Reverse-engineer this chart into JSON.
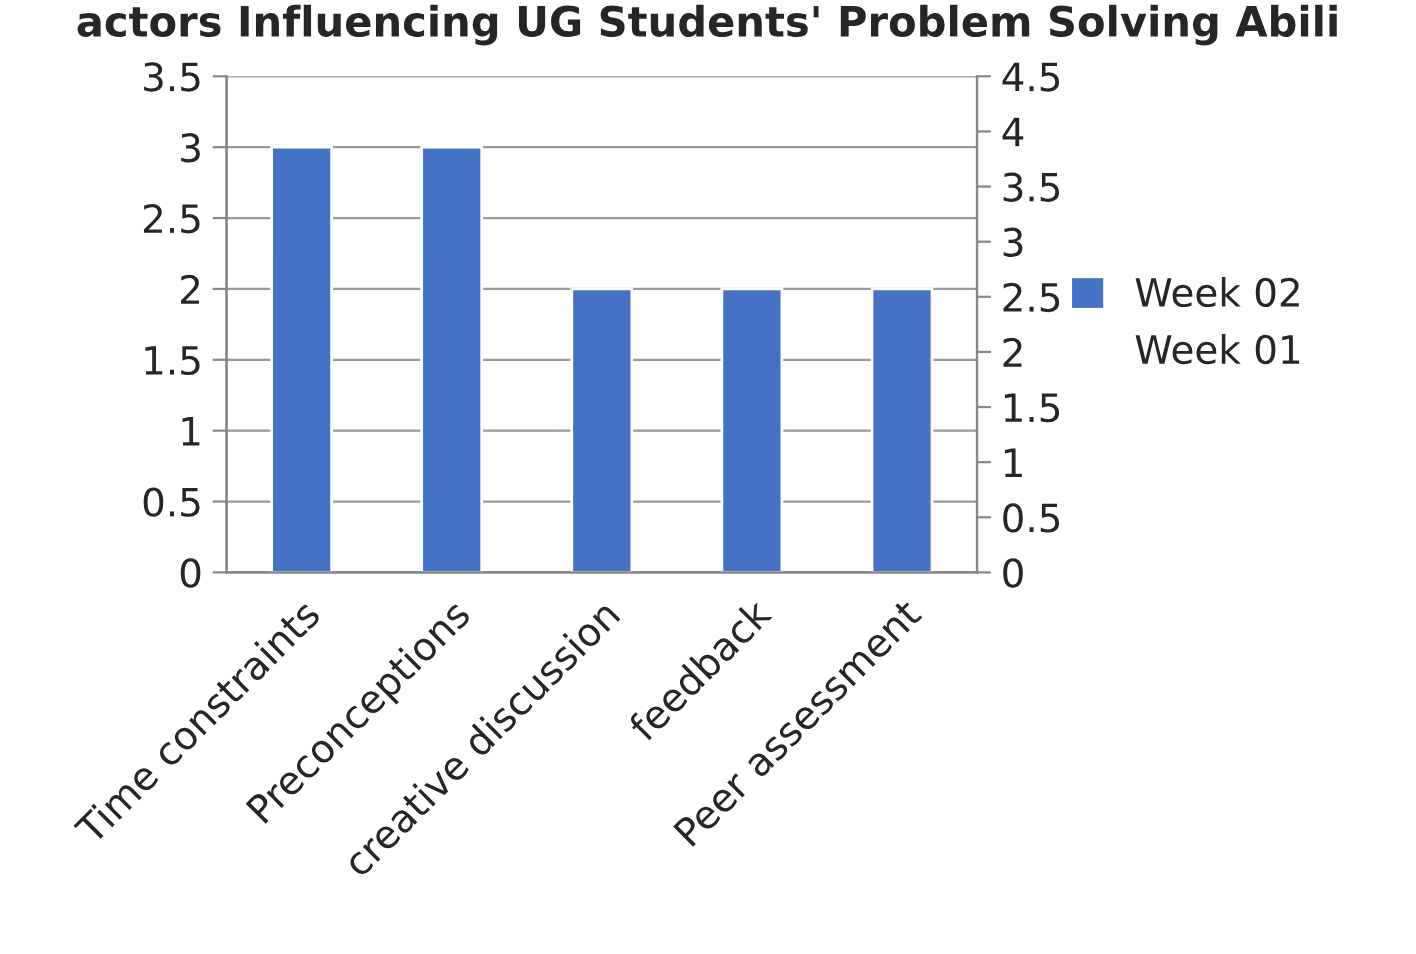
{
  "chart_data": {
    "type": "bar",
    "title": "actors Influencing UG Students' Problem Solving Abili",
    "categories": [
      "Time constraints",
      "Preconceptions",
      "creative discussion",
      "feedback",
      "Peer assessment"
    ],
    "series": [
      {
        "name": "Week 02",
        "color": "#4472c4",
        "values": [
          3,
          3,
          2,
          2,
          2
        ]
      },
      {
        "name": "Week 01",
        "values": [
          null,
          null,
          null,
          null,
          null
        ]
      }
    ],
    "ylim": [
      0,
      3.5
    ],
    "yticks": [
      0,
      0.5,
      1,
      1.5,
      2,
      2.5,
      3,
      3.5
    ],
    "y2lim": [
      0,
      4.5
    ],
    "y2ticks": [
      0,
      0.5,
      1,
      1.5,
      2,
      2.5,
      3,
      3.5,
      4,
      4.5
    ],
    "grid": "y",
    "legend": "right"
  }
}
